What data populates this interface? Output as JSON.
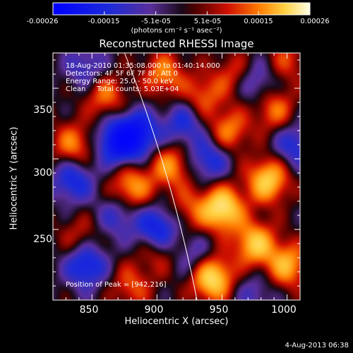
{
  "colorbar": {
    "tick_labels": [
      "-0.00026",
      "-0.00015",
      "-5.1e-05",
      "5.1e-05",
      "0.00015",
      "0.00026"
    ],
    "unit": "(photons cm⁻² s⁻¹ asec⁻²)",
    "min": -0.00026,
    "max": 0.00026
  },
  "chart_data": {
    "type": "heatmap",
    "title": "Reconstructed RHESSI Image",
    "xlabel": "Heliocentric X (arcsec)",
    "ylabel": "Heliocentric Y (arcsec)",
    "xlim": [
      820,
      1010
    ],
    "ylim": [
      200,
      375
    ],
    "x_ticks": [
      850,
      900,
      950,
      1000
    ],
    "y_ticks": [
      250,
      300,
      350
    ],
    "x_tick_labels": [
      "850",
      "900",
      "950",
      "1000"
    ],
    "y_tick_labels": [
      "250",
      "300",
      "350"
    ],
    "peak_x": 942,
    "peak_y": 216,
    "annotations": {
      "time": "18-Aug-2010 01:35:08.000 to 01:40:14.000",
      "detectors": "Detectors: 4F 5F 6F 7F 8F, Att 0",
      "energy": "Energy Range: 25.0 - 50.0 keV",
      "method": "Clean     Total counts: 5.03E+04",
      "peak": "Position of Peak = [942,216]"
    },
    "blobs": [
      {
        "x": 950,
        "y": 265,
        "v": 1.0
      },
      {
        "x": 985,
        "y": 285,
        "v": 0.85
      },
      {
        "x": 975,
        "y": 240,
        "v": 0.8
      },
      {
        "x": 942,
        "y": 216,
        "v": 1.0
      },
      {
        "x": 1000,
        "y": 225,
        "v": 0.7
      },
      {
        "x": 955,
        "y": 320,
        "v": 0.55
      },
      {
        "x": 990,
        "y": 335,
        "v": 0.5
      },
      {
        "x": 880,
        "y": 280,
        "v": 0.65
      },
      {
        "x": 910,
        "y": 295,
        "v": 0.6
      },
      {
        "x": 835,
        "y": 310,
        "v": 0.55
      },
      {
        "x": 860,
        "y": 345,
        "v": 0.5
      },
      {
        "x": 905,
        "y": 360,
        "v": 0.55
      },
      {
        "x": 935,
        "y": 345,
        "v": 0.45
      },
      {
        "x": 960,
        "y": 360,
        "v": 0.4
      },
      {
        "x": 1000,
        "y": 370,
        "v": 0.35
      },
      {
        "x": 880,
        "y": 210,
        "v": 0.4
      },
      {
        "x": 900,
        "y": 235,
        "v": 0.35
      },
      {
        "x": 840,
        "y": 245,
        "v": 0.3
      },
      {
        "x": 925,
        "y": 265,
        "v": 0.35
      },
      {
        "x": 870,
        "y": 312,
        "v": -0.9
      },
      {
        "x": 885,
        "y": 318,
        "v": -0.8
      },
      {
        "x": 845,
        "y": 225,
        "v": -0.7
      },
      {
        "x": 900,
        "y": 250,
        "v": -0.75
      },
      {
        "x": 835,
        "y": 285,
        "v": -0.6
      },
      {
        "x": 920,
        "y": 325,
        "v": -0.5
      },
      {
        "x": 940,
        "y": 300,
        "v": -0.55
      },
      {
        "x": 1005,
        "y": 310,
        "v": -0.5
      },
      {
        "x": 975,
        "y": 355,
        "v": -0.45
      },
      {
        "x": 870,
        "y": 260,
        "v": -0.4
      },
      {
        "x": 930,
        "y": 230,
        "v": -0.35
      },
      {
        "x": 845,
        "y": 365,
        "v": -0.4
      },
      {
        "x": 975,
        "y": 205,
        "v": -0.3
      }
    ]
  },
  "footer": {
    "timestamp": "4-Aug-2013 06:38"
  }
}
